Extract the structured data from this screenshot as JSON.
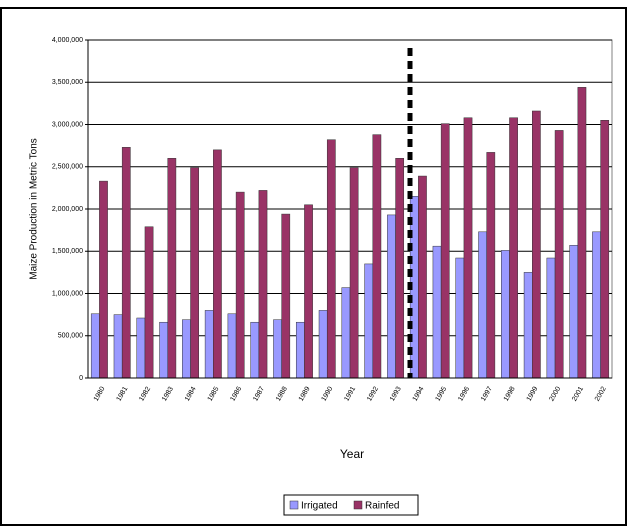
{
  "chart_data": {
    "type": "bar",
    "categories": [
      "1980",
      "1981",
      "1982",
      "1983",
      "1984",
      "1985",
      "1986",
      "1987",
      "1988",
      "1989",
      "1990",
      "1991",
      "1992",
      "1993",
      "1994",
      "1995",
      "1996",
      "1997",
      "1998",
      "1999",
      "2000",
      "2001",
      "2002"
    ],
    "series": [
      {
        "name": "Irrigated",
        "color": "#9999ff",
        "values": [
          760000,
          750000,
          710000,
          660000,
          690000,
          800000,
          760000,
          660000,
          690000,
          660000,
          800000,
          1070000,
          1350000,
          1930000,
          2150000,
          1560000,
          1420000,
          1730000,
          1510000,
          1250000,
          1420000,
          1570000,
          1730000
        ]
      },
      {
        "name": "Rainfed",
        "color": "#993366",
        "values": [
          2330000,
          2730000,
          1790000,
          2600000,
          2490000,
          2700000,
          2200000,
          2220000,
          1940000,
          2050000,
          2820000,
          2490000,
          2880000,
          2600000,
          2390000,
          3010000,
          3080000,
          2670000,
          3080000,
          3160000,
          2930000,
          3440000,
          3050000
        ]
      }
    ],
    "ylim": [
      0,
      4000000
    ],
    "yticks": [
      0,
      {
        "value": 500000,
        "label": "500,000"
      },
      {
        "value": 1000000,
        "label": "1,000,000"
      },
      {
        "value": 1500000,
        "label": "1,500,000"
      },
      {
        "value": 2000000,
        "label": "2,000,000"
      },
      {
        "value": 2500000,
        "label": "2,500,000"
      },
      {
        "value": 3000000,
        "label": "3,000,000"
      },
      {
        "value": 3500000,
        "label": "3,500,000"
      },
      {
        "value": 4000000,
        "label": "4,000,000"
      }
    ],
    "xlabel": "Year",
    "ylabel": "Maize Production in Metric Tons",
    "grid": true,
    "legend": "bottom"
  }
}
